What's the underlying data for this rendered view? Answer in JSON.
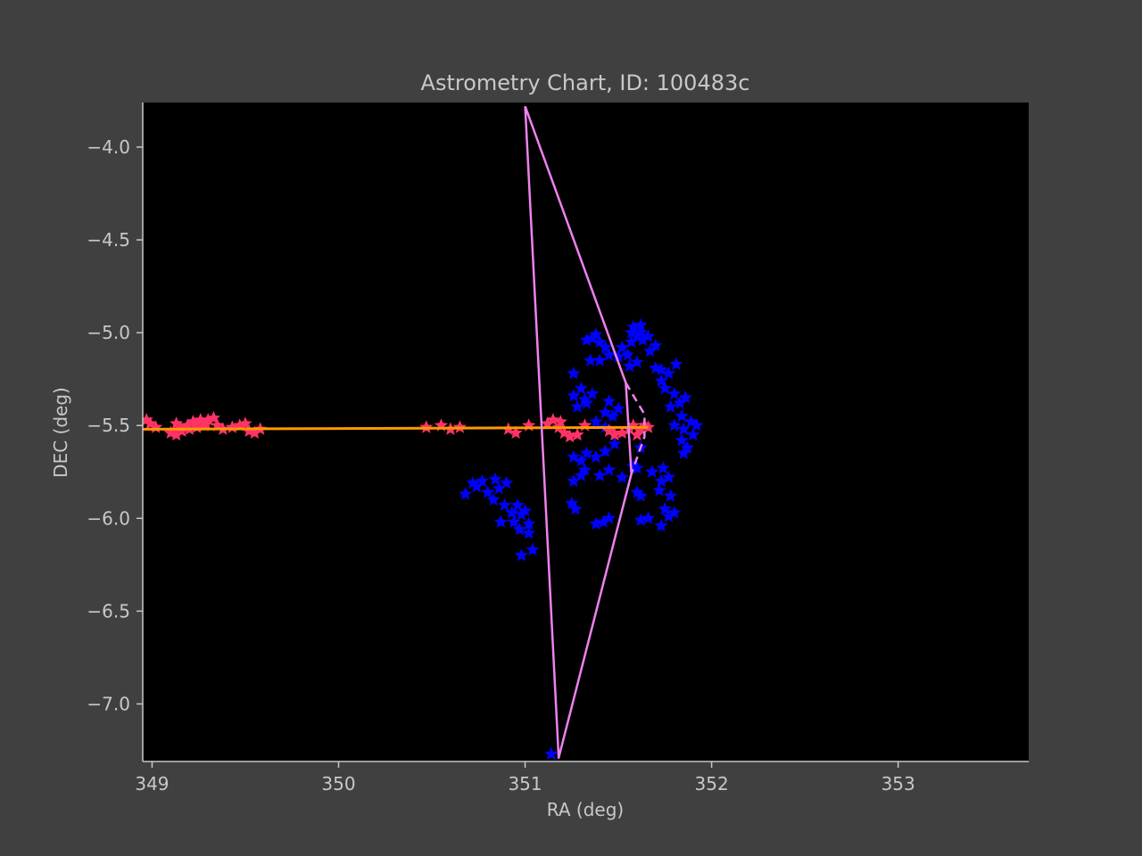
{
  "chart_data": {
    "type": "scatter",
    "title": "Astrometry Chart, ID: 100483c",
    "xlabel": "RA (deg)",
    "ylabel": "DEC (deg)",
    "xlim": [
      348.95,
      353.7
    ],
    "ylim": [
      -7.31,
      -3.76
    ],
    "xticks": [
      349,
      350,
      351,
      352,
      353
    ],
    "yticks": [
      -4.0,
      -4.5,
      -5.0,
      -5.5,
      -6.0,
      -6.5,
      -7.0
    ],
    "xtick_labels": [
      "349",
      "350",
      "351",
      "352",
      "353"
    ],
    "ytick_labels": [
      "−4.0",
      "−4.5",
      "−5.0",
      "−5.5",
      "−6.0",
      "−6.5",
      "−7.0"
    ],
    "grid": false,
    "colors": {
      "figure_bg": "#404040",
      "plot_bg": "#000000",
      "axis": "#c8c8c8",
      "blue_stars": "#0000ff",
      "red_stars": "#ff3366",
      "track": "#ff9900",
      "outline": "#ee82ee"
    },
    "series": [
      {
        "kind": "stars",
        "color": "#0000ff",
        "points": [
          [
            351.14,
            -7.27
          ],
          [
            350.98,
            -6.2
          ],
          [
            351.04,
            -6.17
          ],
          [
            350.94,
            -6.02
          ],
          [
            350.97,
            -6.06
          ],
          [
            351.02,
            -6.03
          ],
          [
            351.02,
            -6.08
          ],
          [
            350.87,
            -6.02
          ],
          [
            350.93,
            -5.97
          ],
          [
            350.96,
            -5.93
          ],
          [
            350.89,
            -5.93
          ],
          [
            350.83,
            -5.9
          ],
          [
            350.8,
            -5.86
          ],
          [
            350.74,
            -5.83
          ],
          [
            350.68,
            -5.87
          ],
          [
            350.72,
            -5.81
          ],
          [
            350.77,
            -5.8
          ],
          [
            350.84,
            -5.79
          ],
          [
            350.9,
            -5.81
          ],
          [
            350.86,
            -5.84
          ],
          [
            351.0,
            -5.96
          ],
          [
            350.98,
            -5.98
          ],
          [
            351.25,
            -5.92
          ],
          [
            351.27,
            -5.95
          ],
          [
            351.38,
            -6.03
          ],
          [
            351.45,
            -6.0
          ],
          [
            351.42,
            -6.02
          ],
          [
            351.62,
            -6.01
          ],
          [
            351.66,
            -6.0
          ],
          [
            351.73,
            -6.04
          ],
          [
            351.77,
            -5.99
          ],
          [
            351.8,
            -5.97
          ],
          [
            351.75,
            -5.95
          ],
          [
            351.62,
            -5.88
          ],
          [
            351.6,
            -5.86
          ],
          [
            351.72,
            -5.85
          ],
          [
            351.78,
            -5.88
          ],
          [
            351.73,
            -5.8
          ],
          [
            351.77,
            -5.78
          ],
          [
            351.68,
            -5.75
          ],
          [
            351.74,
            -5.73
          ],
          [
            351.26,
            -5.8
          ],
          [
            351.3,
            -5.77
          ],
          [
            351.32,
            -5.74
          ],
          [
            351.4,
            -5.77
          ],
          [
            351.45,
            -5.74
          ],
          [
            351.52,
            -5.78
          ],
          [
            351.58,
            -5.72
          ],
          [
            351.6,
            -5.73
          ],
          [
            351.62,
            -5.62
          ],
          [
            351.26,
            -5.67
          ],
          [
            351.3,
            -5.69
          ],
          [
            351.33,
            -5.65
          ],
          [
            351.38,
            -5.67
          ],
          [
            351.43,
            -5.64
          ],
          [
            351.48,
            -5.6
          ],
          [
            351.85,
            -5.65
          ],
          [
            351.87,
            -5.62
          ],
          [
            351.84,
            -5.58
          ],
          [
            351.9,
            -5.55
          ],
          [
            351.92,
            -5.5
          ],
          [
            351.89,
            -5.48
          ],
          [
            351.85,
            -5.52
          ],
          [
            351.8,
            -5.5
          ],
          [
            351.84,
            -5.45
          ],
          [
            351.28,
            -5.4
          ],
          [
            351.32,
            -5.36
          ],
          [
            351.26,
            -5.34
          ],
          [
            351.3,
            -5.3
          ],
          [
            351.36,
            -5.33
          ],
          [
            351.33,
            -5.38
          ],
          [
            351.45,
            -5.37
          ],
          [
            351.5,
            -5.41
          ],
          [
            351.43,
            -5.43
          ],
          [
            351.47,
            -5.45
          ],
          [
            351.38,
            -5.48
          ],
          [
            351.43,
            -5.51
          ],
          [
            351.78,
            -5.4
          ],
          [
            351.83,
            -5.38
          ],
          [
            351.86,
            -5.35
          ],
          [
            351.8,
            -5.33
          ],
          [
            351.75,
            -5.3
          ],
          [
            351.73,
            -5.26
          ],
          [
            351.77,
            -5.22
          ],
          [
            351.81,
            -5.17
          ],
          [
            351.73,
            -5.2
          ],
          [
            351.7,
            -5.19
          ],
          [
            351.26,
            -5.22
          ],
          [
            351.35,
            -5.15
          ],
          [
            351.4,
            -5.15
          ],
          [
            351.45,
            -5.12
          ],
          [
            351.5,
            -5.13
          ],
          [
            351.43,
            -5.08
          ],
          [
            351.4,
            -5.05
          ],
          [
            351.36,
            -5.03
          ],
          [
            351.33,
            -5.04
          ],
          [
            351.38,
            -5.01
          ],
          [
            351.56,
            -5.18
          ],
          [
            351.6,
            -5.16
          ],
          [
            351.55,
            -5.12
          ],
          [
            351.52,
            -5.08
          ],
          [
            351.57,
            -5.05
          ],
          [
            351.6,
            -5.02
          ],
          [
            351.57,
            -5.0
          ],
          [
            351.62,
            -5.0
          ],
          [
            351.58,
            -4.97
          ],
          [
            351.62,
            -4.96
          ],
          [
            351.66,
            -5.02
          ],
          [
            351.7,
            -5.07
          ],
          [
            351.63,
            -5.04
          ],
          [
            351.67,
            -5.1
          ]
        ]
      },
      {
        "kind": "stars",
        "color": "#ff3366",
        "points": [
          [
            348.97,
            -5.47
          ],
          [
            348.99,
            -5.49
          ],
          [
            349.02,
            -5.51
          ],
          [
            349.1,
            -5.54
          ],
          [
            349.13,
            -5.55
          ],
          [
            349.16,
            -5.53
          ],
          [
            349.2,
            -5.52
          ],
          [
            349.24,
            -5.51
          ],
          [
            349.28,
            -5.5
          ],
          [
            349.13,
            -5.49
          ],
          [
            349.15,
            -5.51
          ],
          [
            349.19,
            -5.5
          ],
          [
            349.22,
            -5.48
          ],
          [
            349.26,
            -5.47
          ],
          [
            349.3,
            -5.47
          ],
          [
            349.33,
            -5.46
          ],
          [
            349.29,
            -5.49
          ],
          [
            349.35,
            -5.5
          ],
          [
            349.38,
            -5.52
          ],
          [
            349.43,
            -5.51
          ],
          [
            349.47,
            -5.5
          ],
          [
            349.5,
            -5.49
          ],
          [
            349.52,
            -5.53
          ],
          [
            349.55,
            -5.54
          ],
          [
            349.58,
            -5.52
          ],
          [
            350.47,
            -5.51
          ],
          [
            350.55,
            -5.5
          ],
          [
            350.6,
            -5.52
          ],
          [
            350.65,
            -5.51
          ],
          [
            350.91,
            -5.52
          ],
          [
            350.95,
            -5.54
          ],
          [
            351.02,
            -5.5
          ],
          [
            351.12,
            -5.49
          ],
          [
            351.15,
            -5.47
          ],
          [
            351.19,
            -5.48
          ],
          [
            351.18,
            -5.51
          ],
          [
            351.21,
            -5.54
          ],
          [
            351.24,
            -5.56
          ],
          [
            351.28,
            -5.55
          ],
          [
            351.32,
            -5.5
          ],
          [
            351.45,
            -5.53
          ],
          [
            351.48,
            -5.55
          ],
          [
            351.52,
            -5.54
          ],
          [
            351.56,
            -5.52
          ],
          [
            351.58,
            -5.5
          ],
          [
            351.62,
            -5.52
          ],
          [
            351.64,
            -5.5
          ],
          [
            351.66,
            -5.51
          ],
          [
            351.6,
            -5.55
          ]
        ]
      },
      {
        "kind": "line",
        "color": "#ff9900",
        "points": [
          [
            348.95,
            -5.52
          ],
          [
            351.66,
            -5.51
          ]
        ]
      },
      {
        "kind": "polygon",
        "color": "#ee82ee",
        "points": [
          [
            351.0,
            -3.78
          ],
          [
            351.54,
            -5.27
          ],
          [
            351.57,
            -5.76
          ],
          [
            351.18,
            -7.29
          ],
          [
            351.0,
            -3.78
          ]
        ]
      },
      {
        "kind": "dashed",
        "color": "#ee82ee",
        "points": [
          [
            351.54,
            -5.27
          ],
          [
            351.64,
            -5.44
          ],
          [
            351.64,
            -5.56
          ],
          [
            351.57,
            -5.76
          ]
        ]
      }
    ]
  }
}
